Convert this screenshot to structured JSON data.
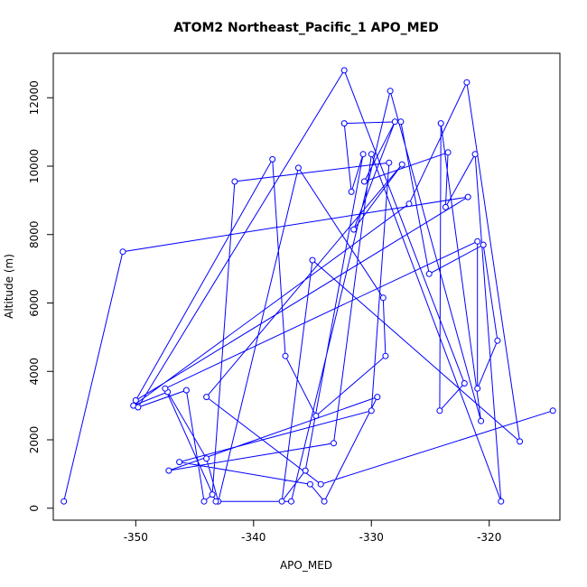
{
  "chart_data": {
    "type": "line",
    "title": "ATOM2 Northeast_Pacific_1 APO_MED",
    "xlabel": "APO_MED",
    "ylabel": "Altitude (m)",
    "xlim": [
      -357,
      -314
    ],
    "ylim": [
      -350,
      13300
    ],
    "xticks": [
      -350,
      -340,
      -330,
      -320
    ],
    "yticks": [
      0,
      2000,
      4000,
      6000,
      8000,
      10000,
      12000
    ],
    "grid": false,
    "legend": "none",
    "colors": {
      "series": "#0000ff",
      "axes": "#000000",
      "background": "#ffffff"
    },
    "series": [
      {
        "marker": "open-circle",
        "x": [
          -356.1,
          -351.1,
          -321.8,
          -350.0,
          -338.4,
          -337.3,
          -334.7,
          -328.8,
          -329.0,
          -336.2,
          -343.0,
          -344.0,
          -347.3,
          -350.2,
          -326.8,
          -321.9,
          -317.4,
          -335.0,
          -337.6,
          -335.6,
          -330.7,
          -331.7,
          -332.3,
          -327.5,
          -325.1,
          -320.5,
          -319.3,
          -321.0,
          -321.0,
          -347.5,
          -343.2,
          -336.8,
          -328.4,
          -320.7,
          -324.1,
          -324.2,
          -322.1,
          -332.3,
          -349.8,
          -345.7,
          -344.2,
          -343.5,
          -341.6,
          -328.5,
          -330.0,
          -346.3,
          -335.2,
          -334.0,
          -329.5,
          -347.2,
          -333.2,
          -330.0,
          -319.0,
          -321.2,
          -323.7,
          -323.5,
          -330.6,
          -328.0,
          -331.5,
          -327.4,
          -344.0,
          -334.3,
          -314.6
        ],
        "y": [
          200,
          7500,
          9100,
          3150,
          10200,
          4450,
          2700,
          4450,
          6150,
          9950,
          200,
          1450,
          3400,
          3000,
          8900,
          12450,
          1950,
          7250,
          200,
          1100,
          10350,
          9250,
          11250,
          11300,
          6850,
          7700,
          4900,
          3500,
          7800,
          3500,
          200,
          200,
          12200,
          2550,
          11250,
          2850,
          3650,
          12800,
          2950,
          3450,
          200,
          400,
          9550,
          10100,
          2850,
          1350,
          700,
          200,
          3250,
          1100,
          1900,
          10350,
          200,
          10350,
          8800,
          10400,
          9550,
          11300,
          8150,
          10050,
          3250,
          700,
          2850
        ]
      }
    ]
  }
}
